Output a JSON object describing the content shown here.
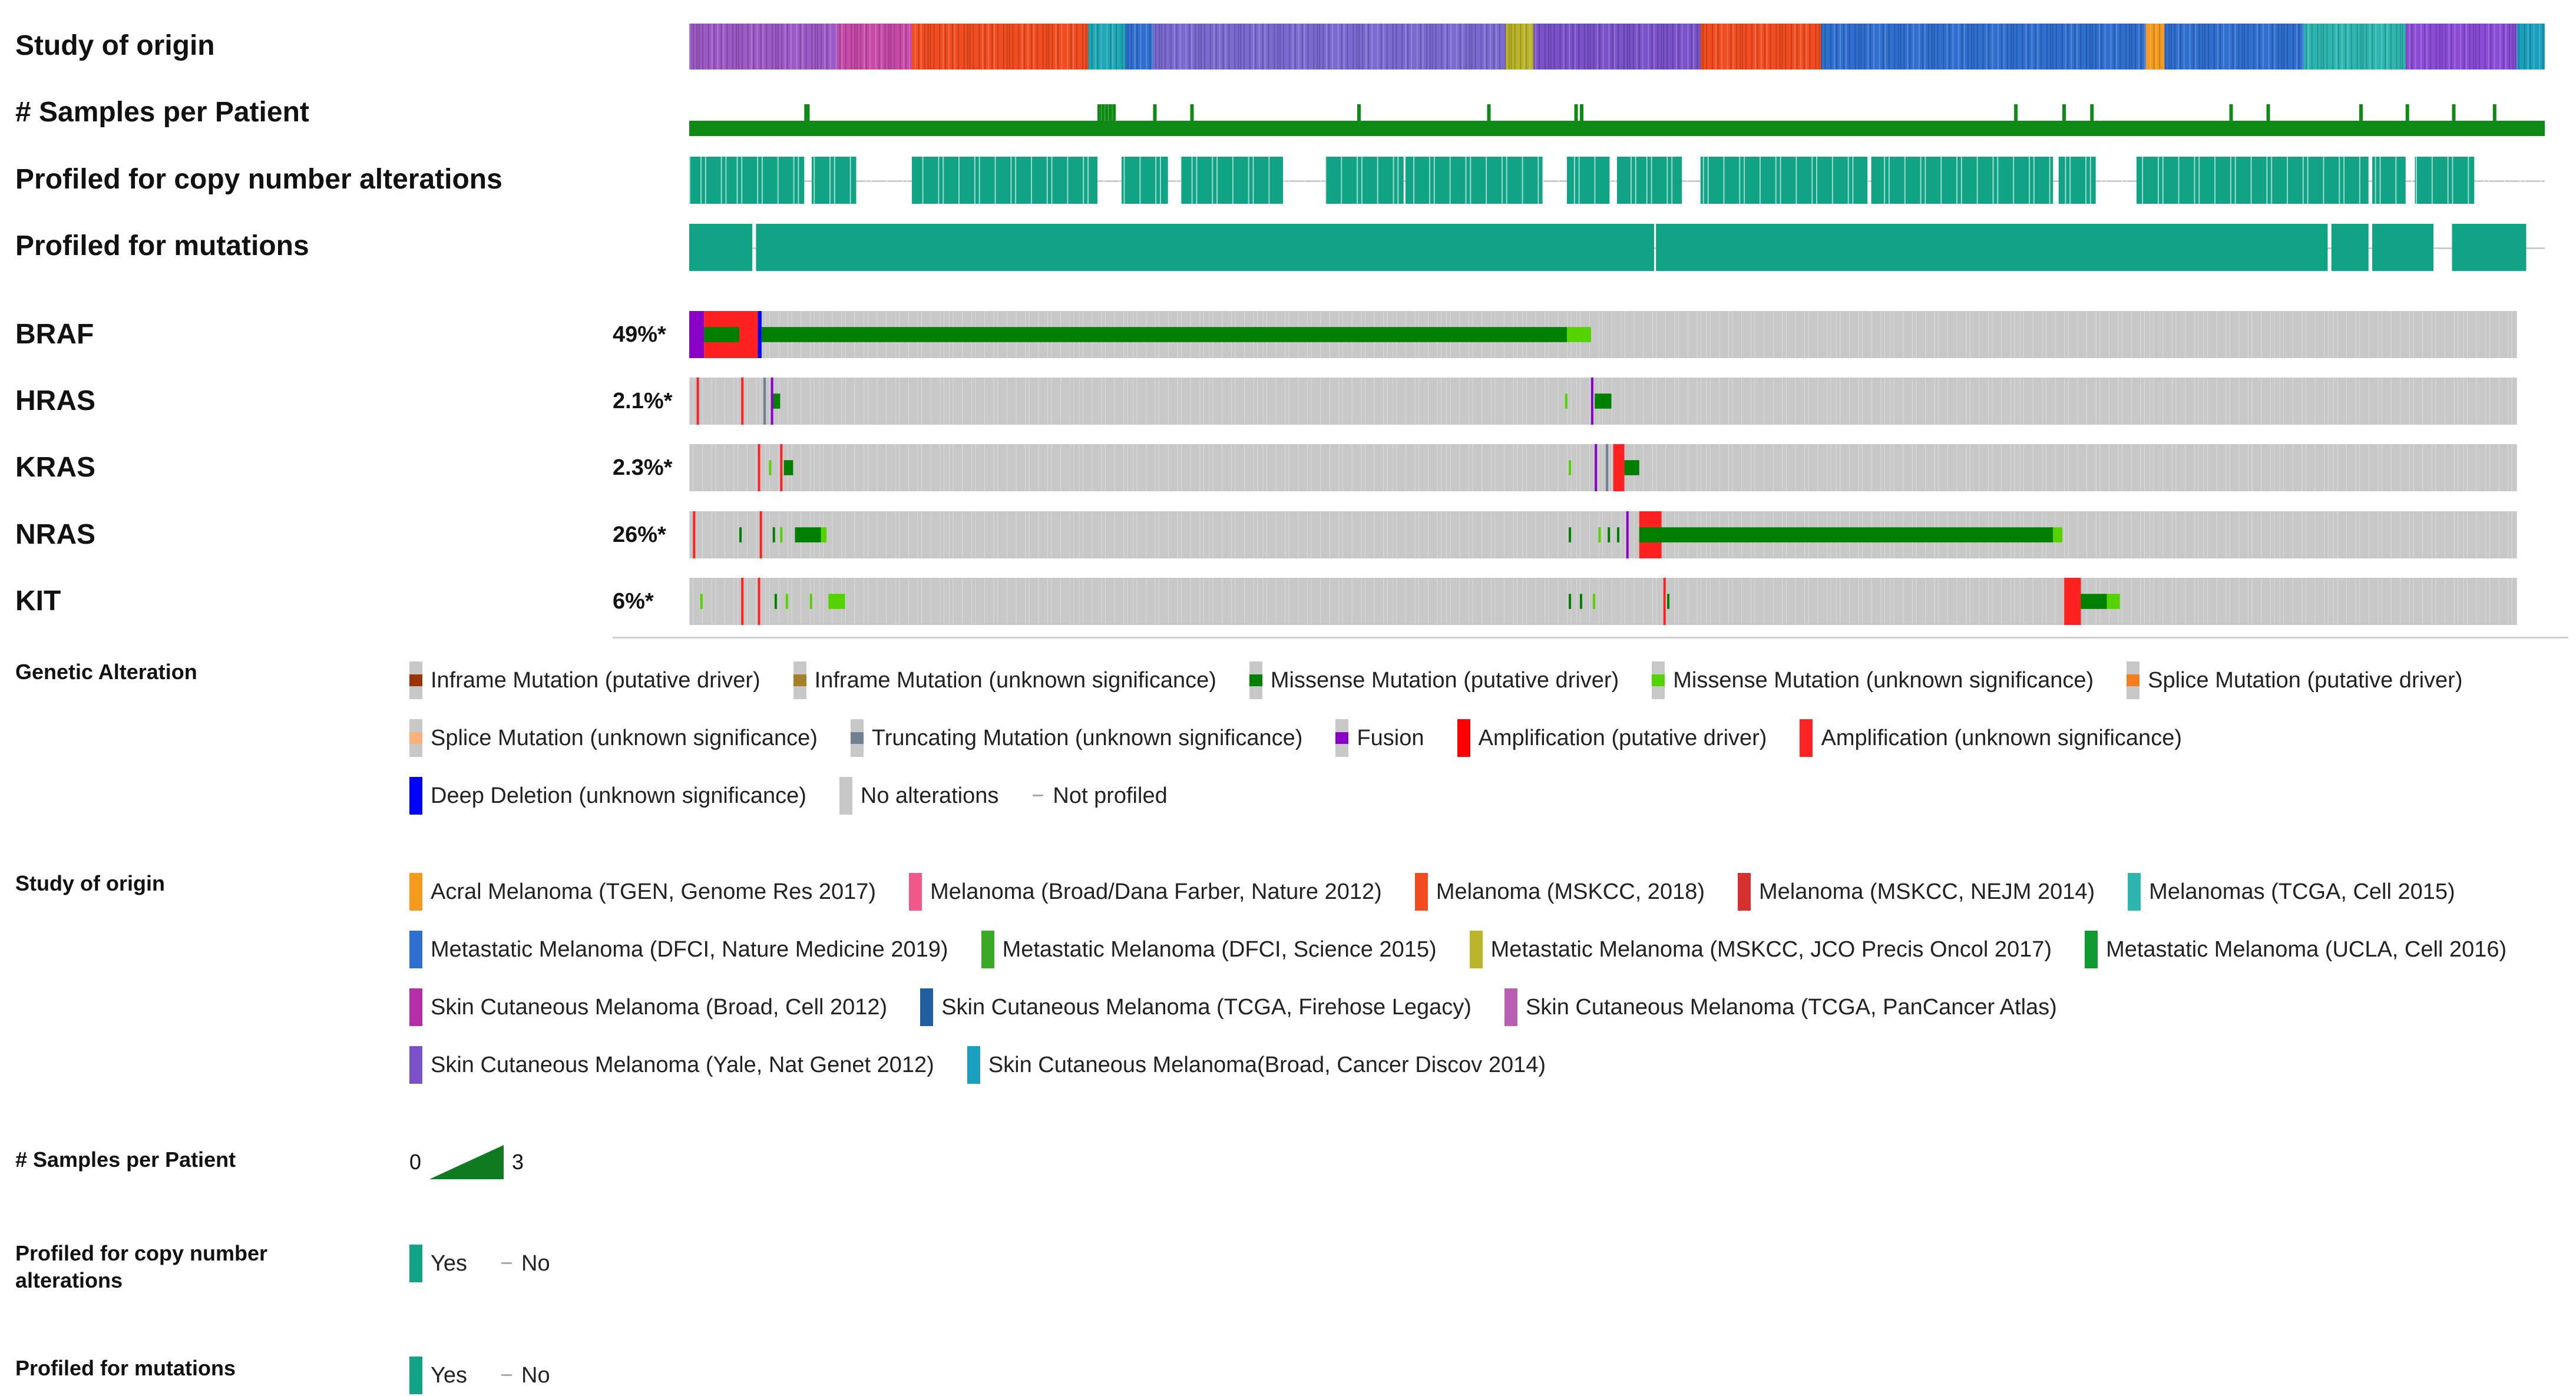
{
  "tracks": {
    "study_of_origin": "Study of origin",
    "samples_per_patient": "# Samples per Patient",
    "profiled_cna": "Profiled for copy number alterations",
    "profiled_mutations": "Profiled for mutations"
  },
  "chart_data": {
    "type": "oncoprint",
    "genes": [
      {
        "name": "BRAF",
        "pct": "49%*",
        "pct_value": 49,
        "segments": [
          {
            "type": "fusion",
            "from": 0.0,
            "to": 0.008
          },
          {
            "type": "amp_driver",
            "from": 0.008,
            "to": 0.038
          },
          {
            "type": "missense_driver",
            "from": 0.008,
            "to": 0.027
          },
          {
            "type": "deep_deletion",
            "from": 0.037,
            "to": 0.039
          },
          {
            "type": "missense_driver",
            "from": 0.039,
            "to": 0.473
          },
          {
            "type": "missense_vus",
            "from": 0.473,
            "to": 0.486
          }
        ],
        "ticks": []
      },
      {
        "name": "HRAS",
        "pct": "2.1%*",
        "pct_value": 2.1,
        "segments": [
          {
            "type": "missense_driver",
            "from": 0.044,
            "to": 0.049
          },
          {
            "type": "missense_driver",
            "from": 0.488,
            "to": 0.497
          }
        ],
        "ticks": [
          {
            "type": "amp_driver",
            "at": 0.004
          },
          {
            "type": "amp_driver",
            "at": 0.028
          },
          {
            "type": "truncating",
            "at": 0.04
          },
          {
            "type": "fusion",
            "at": 0.044
          },
          {
            "type": "missense_vus",
            "at": 0.472
          },
          {
            "type": "fusion",
            "at": 0.486
          }
        ]
      },
      {
        "name": "KRAS",
        "pct": "2.3%*",
        "pct_value": 2.3,
        "segments": [
          {
            "type": "missense_driver",
            "from": 0.051,
            "to": 0.056
          },
          {
            "type": "amp_driver",
            "from": 0.498,
            "to": 0.504
          },
          {
            "type": "missense_driver",
            "from": 0.504,
            "to": 0.512
          }
        ],
        "ticks": [
          {
            "type": "amp_driver",
            "at": 0.037
          },
          {
            "type": "missense_vus",
            "at": 0.043
          },
          {
            "type": "amp_driver",
            "at": 0.049
          },
          {
            "type": "missense_vus",
            "at": 0.474
          },
          {
            "type": "fusion",
            "at": 0.488
          },
          {
            "type": "truncating",
            "at": 0.494
          }
        ]
      },
      {
        "name": "NRAS",
        "pct": "26%*",
        "pct_value": 26,
        "segments": [
          {
            "type": "missense_driver",
            "from": 0.057,
            "to": 0.071
          },
          {
            "type": "missense_vus",
            "from": 0.071,
            "to": 0.074
          },
          {
            "type": "amp_driver",
            "from": 0.512,
            "to": 0.524
          },
          {
            "type": "missense_driver",
            "from": 0.512,
            "to": 0.735
          },
          {
            "type": "missense_vus",
            "from": 0.735,
            "to": 0.74
          }
        ],
        "ticks": [
          {
            "type": "amp_driver",
            "at": 0.002
          },
          {
            "type": "missense_driver",
            "at": 0.027
          },
          {
            "type": "amp_driver",
            "at": 0.038
          },
          {
            "type": "missense_driver",
            "at": 0.045
          },
          {
            "type": "missense_vus",
            "at": 0.049
          },
          {
            "type": "missense_driver",
            "at": 0.474
          },
          {
            "type": "missense_vus",
            "at": 0.49
          },
          {
            "type": "missense_driver",
            "at": 0.495
          },
          {
            "type": "missense_driver",
            "at": 0.5
          },
          {
            "type": "fusion",
            "at": 0.505
          }
        ]
      },
      {
        "name": "KIT",
        "pct": "6%*",
        "pct_value": 6,
        "segments": [
          {
            "type": "missense_vus",
            "from": 0.075,
            "to": 0.084
          },
          {
            "type": "amp_driver",
            "from": 0.741,
            "to": 0.75
          },
          {
            "type": "missense_driver",
            "from": 0.75,
            "to": 0.764
          },
          {
            "type": "missense_vus",
            "from": 0.764,
            "to": 0.771
          }
        ],
        "ticks": [
          {
            "type": "missense_vus",
            "at": 0.006
          },
          {
            "type": "amp_driver",
            "at": 0.028
          },
          {
            "type": "amp_driver",
            "at": 0.037
          },
          {
            "type": "missense_driver",
            "at": 0.046
          },
          {
            "type": "missense_vus",
            "at": 0.052
          },
          {
            "type": "missense_vus",
            "at": 0.065
          },
          {
            "type": "missense_driver",
            "at": 0.474
          },
          {
            "type": "missense_driver",
            "at": 0.48
          },
          {
            "type": "missense_vus",
            "at": 0.487
          },
          {
            "type": "amp_driver",
            "at": 0.525
          },
          {
            "type": "missense_driver",
            "at": 0.527
          }
        ]
      }
    ],
    "study_bands": [
      {
        "c": "#9c5ac7",
        "from": 0.0,
        "to": 0.08
      },
      {
        "c": "#c74aa8",
        "from": 0.08,
        "to": 0.12
      },
      {
        "c": "#f24d21",
        "from": 0.12,
        "to": 0.215
      },
      {
        "c": "#1ea7b6",
        "from": 0.215,
        "to": 0.235
      },
      {
        "c": "#2f6fd0",
        "from": 0.235,
        "to": 0.25
      },
      {
        "c": "#7b6ad0",
        "from": 0.25,
        "to": 0.44
      },
      {
        "c": "#b9b42a",
        "from": 0.44,
        "to": 0.455
      },
      {
        "c": "#7a52c9",
        "from": 0.455,
        "to": 0.545
      },
      {
        "c": "#f24d21",
        "from": 0.545,
        "to": 0.61
      },
      {
        "c": "#2f6fd0",
        "from": 0.61,
        "to": 0.785
      },
      {
        "c": "#f39a1f",
        "from": 0.785,
        "to": 0.795
      },
      {
        "c": "#2f6fd0",
        "from": 0.795,
        "to": 0.87
      },
      {
        "c": "#2db6b0",
        "from": 0.87,
        "to": 0.925
      },
      {
        "c": "#8a4cd6",
        "from": 0.925,
        "to": 0.985
      },
      {
        "c": "#1a9fbf",
        "from": 0.985,
        "to": 1.0
      }
    ],
    "samples_per_patient": {
      "min": 0,
      "max": 3,
      "spikes": [
        0.062,
        0.063,
        0.22,
        0.222,
        0.224,
        0.226,
        0.228,
        0.25,
        0.27,
        0.36,
        0.43,
        0.477,
        0.48,
        0.714,
        0.74,
        0.755,
        0.83,
        0.85,
        0.9,
        0.925,
        0.95,
        0.972
      ]
    },
    "cna_profiled_blocks": [
      [
        0.0,
        0.062
      ],
      [
        0.066,
        0.09
      ],
      [
        0.12,
        0.22
      ],
      [
        0.233,
        0.258
      ],
      [
        0.265,
        0.32
      ],
      [
        0.343,
        0.385
      ],
      [
        0.386,
        0.46
      ],
      [
        0.473,
        0.496
      ],
      [
        0.5,
        0.535
      ],
      [
        0.545,
        0.635
      ],
      [
        0.637,
        0.735
      ],
      [
        0.738,
        0.758
      ],
      [
        0.78,
        0.905
      ],
      [
        0.907,
        0.925
      ],
      [
        0.93,
        0.962
      ]
    ],
    "mutation_profiled_blocks": [
      [
        0.0,
        0.034
      ],
      [
        0.036,
        0.52
      ],
      [
        0.521,
        0.883
      ],
      [
        0.885,
        0.905
      ],
      [
        0.907,
        0.94
      ],
      [
        0.95,
        0.99
      ]
    ]
  },
  "legend": {
    "genetic_alteration": {
      "title": "Genetic Alteration",
      "items": [
        {
          "label": "Inframe Mutation (putative driver)",
          "color": "#993404",
          "shape": "mid"
        },
        {
          "label": "Inframe Mutation (unknown significance)",
          "color": "#a68028",
          "shape": "mid"
        },
        {
          "label": "Missense Mutation (putative driver)",
          "color": "#008000",
          "shape": "mid"
        },
        {
          "label": "Missense Mutation (unknown significance)",
          "color": "#53d400",
          "shape": "mid"
        },
        {
          "label": "Splice Mutation (putative driver)",
          "color": "#f57f20",
          "shape": "mid"
        },
        {
          "label": "Splice Mutation (unknown significance)",
          "color": "#f9b07a",
          "shape": "mid"
        },
        {
          "label": "Truncating Mutation (unknown significance)",
          "color": "#708090",
          "shape": "mid"
        },
        {
          "label": "Fusion",
          "color": "#8b00c9",
          "shape": "mid"
        },
        {
          "label": "Amplification (putative driver)",
          "color": "#ff0000",
          "shape": "full"
        },
        {
          "label": "Amplification (unknown significance)",
          "color": "#ff2222",
          "shape": "full"
        },
        {
          "label": "Deep Deletion (unknown significance)",
          "color": "#0000ff",
          "shape": "full"
        },
        {
          "label": "No alterations",
          "color": "#c8c8c8",
          "shape": "full"
        },
        {
          "label": "Not profiled",
          "color": "#aaaaaa",
          "shape": "dash"
        }
      ]
    },
    "study_of_origin": {
      "title": "Study of origin",
      "items": [
        {
          "label": "Acral Melanoma (TGEN, Genome Res 2017)",
          "color": "#f39a1f"
        },
        {
          "label": "Melanoma (Broad/Dana Farber, Nature 2012)",
          "color": "#f2578a"
        },
        {
          "label": "Melanoma (MSKCC, 2018)",
          "color": "#f24d21"
        },
        {
          "label": "Melanoma (MSKCC, NEJM 2014)",
          "color": "#d7312f"
        },
        {
          "label": "Melanomas (TCGA, Cell 2015)",
          "color": "#2db6b0"
        },
        {
          "label": "Metastatic Melanoma (DFCI, Nature Medicine 2019)",
          "color": "#2f6fd0"
        },
        {
          "label": "Metastatic Melanoma (DFCI, Science 2015)",
          "color": "#39a927"
        },
        {
          "label": "Metastatic Melanoma (MSKCC, JCO Precis Oncol 2017)",
          "color": "#b9b42a"
        },
        {
          "label": "Metastatic Melanoma (UCLA, Cell 2016)",
          "color": "#0f9a32"
        },
        {
          "label": "Skin Cutaneous Melanoma (Broad, Cell 2012)",
          "color": "#b42fa5"
        },
        {
          "label": "Skin Cutaneous Melanoma (TCGA, Firehose Legacy)",
          "color": "#1f5f9f"
        },
        {
          "label": "Skin Cutaneous Melanoma (TCGA, PanCancer Atlas)",
          "color": "#b95fb2"
        },
        {
          "label": "Skin Cutaneous Melanoma (Yale, Nat Genet 2012)",
          "color": "#7a52c9"
        },
        {
          "label": "Skin Cutaneous Melanoma(Broad, Cancer Discov 2014)",
          "color": "#1a9fbf"
        }
      ]
    },
    "samples_per_patient": {
      "title": "# Samples per Patient",
      "min_label": "0",
      "max_label": "3",
      "color": "#0f7a1f"
    },
    "profiled_cna": {
      "title": "Profiled for copy number alterations",
      "yes": "Yes",
      "no": "No",
      "color": "#11a386"
    },
    "profiled_mutations": {
      "title": "Profiled for mutations",
      "yes": "Yes",
      "no": "No",
      "color": "#11a386"
    }
  },
  "colors": {
    "no_alteration": "#c8c8c8",
    "profiled": "#11a386",
    "profiled_light": "#4fc1a8",
    "samples": "#0f8a16",
    "amp_driver": "#ff2020",
    "missense_driver": "#008000",
    "missense_vus": "#53d400",
    "fusion": "#8b00c9",
    "deep_deletion": "#0000ff",
    "truncating": "#708090"
  }
}
